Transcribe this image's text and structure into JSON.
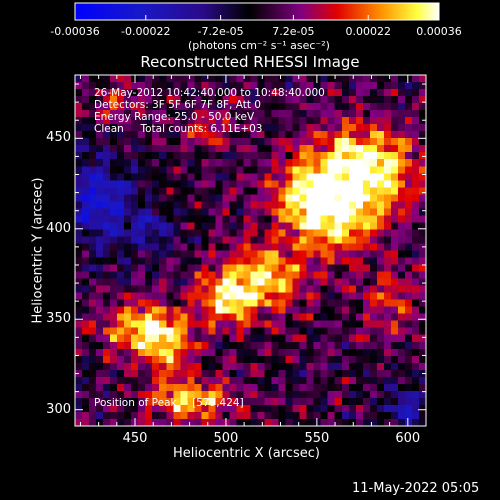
{
  "colorbar": {
    "ticks": [
      "-0.00036",
      "-0.00022",
      "-7.2e-05",
      "7.2e-05",
      "0.00022",
      "0.00036"
    ],
    "units_label": "(photons cm⁻² s⁻¹ asec⁻²)"
  },
  "chart_data": {
    "type": "heatmap",
    "title": "Reconstructed RHESSI Image",
    "xlabel": "Heliocentric X (arcsec)",
    "ylabel": "Heliocentric Y (arcsec)",
    "xlim": [
      417,
      610
    ],
    "ylim": [
      291,
      485
    ],
    "x_ticks": [
      450,
      500,
      550,
      600
    ],
    "y_ticks": [
      300,
      350,
      400,
      450
    ],
    "zlim": [
      -0.00036,
      0.00036
    ],
    "colormap": "rhessi-blue-black-red-yellow-white",
    "annotations": [
      "26-May-2012 10:42:40.000 to 10:48:40.000",
      "Detectors: 3F 5F 6F 7F 8F, Att 0",
      "Energy Range: 25.0 - 50.0 keV",
      "Clean     Total counts: 6.11E+03",
      "Position of Peak = [579,424]"
    ],
    "peak": [
      579,
      424
    ],
    "sources": [
      {
        "x": 575,
        "y": 430,
        "sx": 22,
        "sy": 18,
        "amp": 1.0
      },
      {
        "x": 545,
        "y": 418,
        "sx": 16,
        "sy": 14,
        "amp": 0.6
      },
      {
        "x": 558,
        "y": 400,
        "sx": 14,
        "sy": 12,
        "amp": 0.55
      },
      {
        "x": 520,
        "y": 372,
        "sx": 18,
        "sy": 14,
        "amp": 0.75
      },
      {
        "x": 500,
        "y": 360,
        "sx": 12,
        "sy": 10,
        "amp": 0.55
      },
      {
        "x": 455,
        "y": 345,
        "sx": 16,
        "sy": 10,
        "amp": 0.85
      },
      {
        "x": 470,
        "y": 330,
        "sx": 10,
        "sy": 10,
        "amp": 0.5
      },
      {
        "x": 480,
        "y": 305,
        "sx": 18,
        "sy": 8,
        "amp": 0.7
      },
      {
        "x": 590,
        "y": 360,
        "sx": 12,
        "sy": 14,
        "amp": 0.35
      },
      {
        "x": 440,
        "y": 470,
        "sx": 10,
        "sy": 8,
        "amp": 0.4
      },
      {
        "x": 490,
        "y": 455,
        "sx": 10,
        "sy": 8,
        "amp": 0.35
      }
    ],
    "negative_regions": [
      {
        "x": 430,
        "y": 415,
        "sx": 14,
        "sy": 18,
        "amp": 0.7
      },
      {
        "x": 600,
        "y": 300,
        "sx": 10,
        "sy": 8,
        "amp": 0.5
      },
      {
        "x": 460,
        "y": 400,
        "sx": 10,
        "sy": 8,
        "amp": 0.4
      }
    ]
  },
  "footer": {
    "date": "11-May-2022 05:05"
  }
}
